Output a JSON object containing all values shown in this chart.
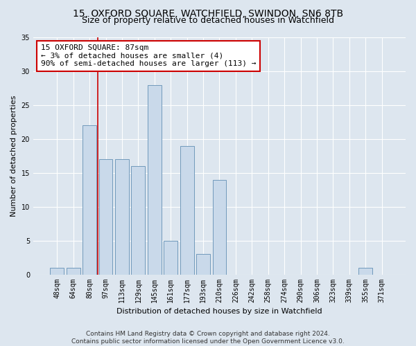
{
  "title": "15, OXFORD SQUARE, WATCHFIELD, SWINDON, SN6 8TB",
  "subtitle": "Size of property relative to detached houses in Watchfield",
  "xlabel": "Distribution of detached houses by size in Watchfield",
  "ylabel": "Number of detached properties",
  "footer_line1": "Contains HM Land Registry data © Crown copyright and database right 2024.",
  "footer_line2": "Contains public sector information licensed under the Open Government Licence v3.0.",
  "categories": [
    "48sqm",
    "64sqm",
    "80sqm",
    "97sqm",
    "113sqm",
    "129sqm",
    "145sqm",
    "161sqm",
    "177sqm",
    "193sqm",
    "210sqm",
    "226sqm",
    "242sqm",
    "258sqm",
    "274sqm",
    "290sqm",
    "306sqm",
    "323sqm",
    "339sqm",
    "355sqm",
    "371sqm"
  ],
  "values": [
    1,
    1,
    22,
    17,
    17,
    16,
    28,
    5,
    19,
    3,
    14,
    0,
    0,
    0,
    0,
    0,
    0,
    0,
    0,
    1,
    0
  ],
  "bar_color": "#c9d9ea",
  "bar_edge_color": "#7099bb",
  "vline_color": "#cc0000",
  "vline_x": 2.5,
  "annotation_text": "15 OXFORD SQUARE: 87sqm\n← 3% of detached houses are smaller (4)\n90% of semi-detached houses are larger (113) →",
  "annotation_box_facecolor": "#ffffff",
  "annotation_box_edgecolor": "#cc0000",
  "ylim": [
    0,
    35
  ],
  "yticks": [
    0,
    5,
    10,
    15,
    20,
    25,
    30,
    35
  ],
  "fig_facecolor": "#dde6ef",
  "ax_facecolor": "#dde6ef",
  "grid_color": "#ffffff",
  "title_fontsize": 10,
  "subtitle_fontsize": 9,
  "axis_label_fontsize": 8,
  "tick_fontsize": 7,
  "annotation_fontsize": 8,
  "footer_fontsize": 6.5
}
